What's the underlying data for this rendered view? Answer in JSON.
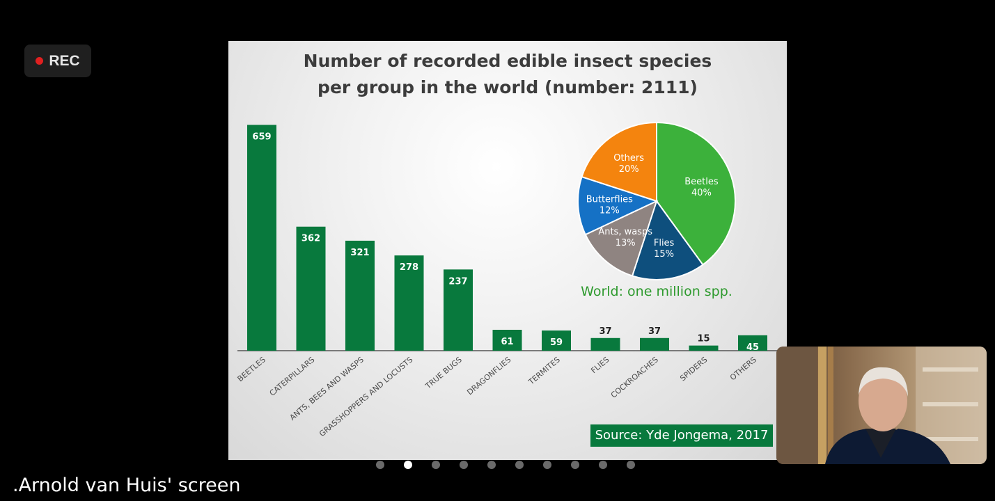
{
  "recording": {
    "label": "REC",
    "icon": "record-dot-icon",
    "color": "#e02020"
  },
  "slide": {
    "title_line1": "Number of recorded edible insect species",
    "title_line2": "per group in the world (number: 2111)",
    "source": "Source: Yde Jongema, 2017",
    "pie_caption": "World: one million spp."
  },
  "chart_data": [
    {
      "type": "bar",
      "categories": [
        "BEETLES",
        "CATERPILLARS",
        "ANTS, BEES AND WASPS",
        "GRASSHOPPERS AND LOCUSTS",
        "TRUE BUGS",
        "DRAGONFLIES",
        "TERMITES",
        "FLIES",
        "COCKROACHES",
        "SPIDERS",
        "OTHERS"
      ],
      "values": [
        659,
        362,
        321,
        278,
        237,
        61,
        59,
        37,
        37,
        15,
        45
      ],
      "title": "Number of recorded edible insect species per group in the world (number: 2111)",
      "ylim": [
        0,
        660
      ],
      "grid": false,
      "color": "#08793d"
    },
    {
      "type": "pie",
      "title": "World: one million spp.",
      "slices": [
        {
          "label": "Beetles",
          "value": 40,
          "pct_label": "40%",
          "color": "#3cb13b",
          "text_color": "#ffffff"
        },
        {
          "label": "Flies",
          "value": 15,
          "pct_label": "15%",
          "color": "#0e4f7d",
          "text_color": "#ffffff"
        },
        {
          "label": "Ants, wasps",
          "value": 13,
          "pct_label": "13%",
          "color": "#8f8481",
          "text_color": "#ffffff"
        },
        {
          "label": "Butterflies",
          "value": 12,
          "pct_label": "12%",
          "color": "#1571c5",
          "text_color": "#ffffff"
        },
        {
          "label": "Others",
          "value": 20,
          "pct_label": "20%",
          "color": "#f4840e",
          "text_color": "#ffffff"
        }
      ]
    }
  ],
  "pagination": {
    "total": 10,
    "active_index": 1
  },
  "presenter": {
    "screen_label": ".Arnold van Huis' screen"
  },
  "colors": {
    "caption_green": "#2e9a2e",
    "bar_green": "#08793d"
  }
}
